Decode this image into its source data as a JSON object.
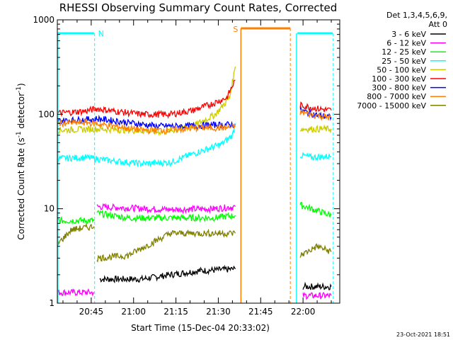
{
  "chart_data": {
    "type": "line",
    "title": "RHESSI Observing Summary Count Rates, Corrected",
    "xlabel": "Start Time (15-Dec-04 20:33:02)",
    "ylabel_main": "Corrected Count Rate (s",
    "ylabel_exp1": "-1",
    "ylabel_mid": " detector",
    "ylabel_exp2": "-1",
    "ylabel_end": ")",
    "y_scale": "log",
    "ylim": [
      1,
      1000
    ],
    "xlim_minutes": [
      0,
      100
    ],
    "x_tick_labels": [
      "20:45",
      "21:00",
      "21:15",
      "21:30",
      "21:45",
      "22:00"
    ],
    "x_tick_minutes": [
      12,
      27,
      42,
      57,
      72,
      87
    ],
    "y_tick_labels": [
      "1",
      "10",
      "100",
      "1000"
    ],
    "y_tick_values": [
      1,
      10,
      100,
      1000
    ],
    "legend_header": [
      "Det 1,3,4,5,6,9,",
      "Att 0"
    ],
    "series": [
      {
        "name": "3 - 6 keV",
        "color": "#000000",
        "segments": [
          [
            [
              15,
              1.8
            ],
            [
              30,
              1.8
            ],
            [
              40,
              2
            ],
            [
              50,
              2.2
            ],
            [
              63,
              2.3
            ]
          ],
          [
            [
              87,
              1.5
            ],
            [
              97,
              1.5
            ]
          ]
        ]
      },
      {
        "name": "6 - 12 keV",
        "color": "#ff00ff",
        "segments": [
          [
            [
              0,
              1.3
            ],
            [
              13,
              1.3
            ]
          ],
          [
            [
              14,
              10.5
            ],
            [
              25,
              10.2
            ],
            [
              40,
              9.8
            ],
            [
              55,
              10
            ],
            [
              63,
              10.5
            ]
          ],
          [
            [
              87,
              1.2
            ],
            [
              97,
              1.2
            ]
          ]
        ]
      },
      {
        "name": "12 - 25 keV",
        "color": "#00ff00",
        "segments": [
          [
            [
              0,
              7.5
            ],
            [
              13,
              7.5
            ]
          ],
          [
            [
              14,
              9
            ],
            [
              25,
              8
            ],
            [
              40,
              8
            ],
            [
              55,
              8
            ],
            [
              63,
              8.5
            ]
          ],
          [
            [
              86,
              11
            ],
            [
              90,
              10
            ],
            [
              97,
              8.5
            ]
          ]
        ]
      },
      {
        "name": "25 - 50 keV",
        "color": "#00ffff",
        "segments": [
          [
            [
              0,
              34
            ],
            [
              10,
              35
            ],
            [
              20,
              32
            ],
            [
              30,
              30
            ],
            [
              40,
              31
            ],
            [
              50,
              40
            ],
            [
              58,
              48
            ],
            [
              62,
              60
            ],
            [
              63,
              80
            ]
          ],
          [
            [
              86,
              37
            ],
            [
              90,
              35
            ],
            [
              97,
              36
            ]
          ]
        ]
      },
      {
        "name": "50 - 100 keV",
        "color": "#cccc00",
        "segments": [
          [
            [
              0,
              68
            ],
            [
              14,
              70
            ],
            [
              25,
              68
            ],
            [
              38,
              65
            ],
            [
              48,
              75
            ],
            [
              56,
              100
            ],
            [
              61,
              150
            ],
            [
              63,
              320
            ]
          ],
          [
            [
              86,
              70
            ],
            [
              92,
              70
            ],
            [
              97,
              70
            ]
          ]
        ]
      },
      {
        "name": "100 - 300 keV",
        "color": "#ff0000",
        "segments": [
          [
            [
              0,
              103
            ],
            [
              10,
              108
            ],
            [
              14,
              115
            ],
            [
              20,
              108
            ],
            [
              30,
              100
            ],
            [
              40,
              100
            ],
            [
              48,
              110
            ],
            [
              55,
              130
            ],
            [
              60,
              150
            ],
            [
              63,
              230
            ]
          ],
          [
            [
              86,
              125
            ],
            [
              92,
              115
            ],
            [
              97,
              110
            ]
          ]
        ]
      },
      {
        "name": "300 - 800 keV",
        "color": "#0000ff",
        "segments": [
          [
            [
              0,
              85
            ],
            [
              10,
              88
            ],
            [
              14,
              90
            ],
            [
              25,
              82
            ],
            [
              35,
              75
            ],
            [
              45,
              75
            ],
            [
              55,
              77
            ],
            [
              63,
              78
            ]
          ],
          [
            [
              86,
              110
            ],
            [
              92,
              98
            ],
            [
              97,
              93
            ]
          ]
        ]
      },
      {
        "name": "800 - 7000 keV",
        "color": "#ff8000",
        "segments": [
          [
            [
              0,
              80
            ],
            [
              10,
              82
            ],
            [
              20,
              75
            ],
            [
              30,
              68
            ],
            [
              40,
              68
            ],
            [
              50,
              72
            ],
            [
              60,
              72
            ],
            [
              63,
              74
            ]
          ],
          [
            [
              86,
              105
            ],
            [
              92,
              97
            ],
            [
              97,
              92
            ]
          ]
        ]
      },
      {
        "name": "7000 - 15000 keV",
        "color": "#808000",
        "segments": [
          [
            [
              0,
              4.2
            ],
            [
              5,
              6
            ],
            [
              13,
              6.5
            ]
          ],
          [
            [
              14,
              3
            ],
            [
              25,
              3.2
            ],
            [
              40,
              5.5
            ],
            [
              50,
              5.5
            ],
            [
              63,
              5.5
            ]
          ],
          [
            [
              86,
              3.2
            ],
            [
              92,
              4
            ],
            [
              97,
              3.5
            ]
          ]
        ]
      }
    ],
    "annotations": [
      {
        "label": "N",
        "color": "#00ffff"
      },
      {
        "label": "S",
        "color": "#ff8000"
      }
    ],
    "timestamp": "23-Oct-2021 18:51"
  }
}
